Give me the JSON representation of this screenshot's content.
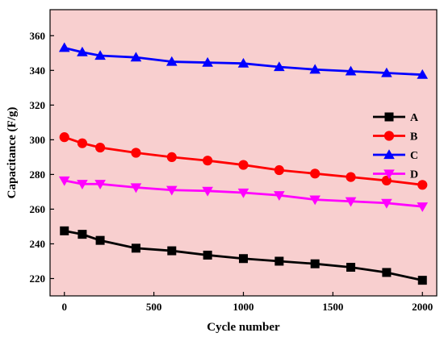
{
  "chart_data": {
    "type": "line",
    "xlabel": "Cycle number",
    "ylabel": "Capacitance (F/g)",
    "xlim": [
      -80,
      2080
    ],
    "ylim": [
      210,
      375
    ],
    "xticks": [
      0,
      500,
      1000,
      1500,
      2000
    ],
    "yticks": [
      220,
      240,
      260,
      280,
      300,
      320,
      340,
      360
    ],
    "xtick_labels": [
      "0",
      "500",
      "1000",
      "1500",
      "2000"
    ],
    "ytick_labels": [
      "220",
      "240",
      "260",
      "280",
      "300",
      "320",
      "340",
      "360"
    ],
    "background_color": "#f8cfcf",
    "grid": false,
    "legend_position": "right",
    "x": [
      0,
      100,
      200,
      400,
      600,
      800,
      1000,
      1200,
      1400,
      1600,
      1800,
      2000
    ],
    "series": [
      {
        "name": "A",
        "color": "#000000",
        "marker": "square",
        "values": [
          247.5,
          245.5,
          242,
          237.5,
          236,
          233.5,
          231.5,
          230,
          228.5,
          226.5,
          223.5,
          219
        ]
      },
      {
        "name": "B",
        "color": "#ff0000",
        "marker": "circle",
        "values": [
          301.5,
          298,
          295.5,
          292.5,
          290,
          288,
          285.5,
          282.5,
          280.5,
          278.5,
          276.5,
          274
        ]
      },
      {
        "name": "C",
        "color": "#0000ff",
        "marker": "triangle-up",
        "values": [
          353,
          350.5,
          348.5,
          347.5,
          345,
          344.5,
          344,
          342,
          340.5,
          339.5,
          338.5,
          337.5
        ]
      },
      {
        "name": "D",
        "color": "#ff00ff",
        "marker": "triangle-down",
        "values": [
          276.5,
          274.5,
          274.5,
          272.5,
          271,
          270.5,
          269.5,
          268,
          265.5,
          264.5,
          263.5,
          261.5
        ]
      }
    ]
  }
}
